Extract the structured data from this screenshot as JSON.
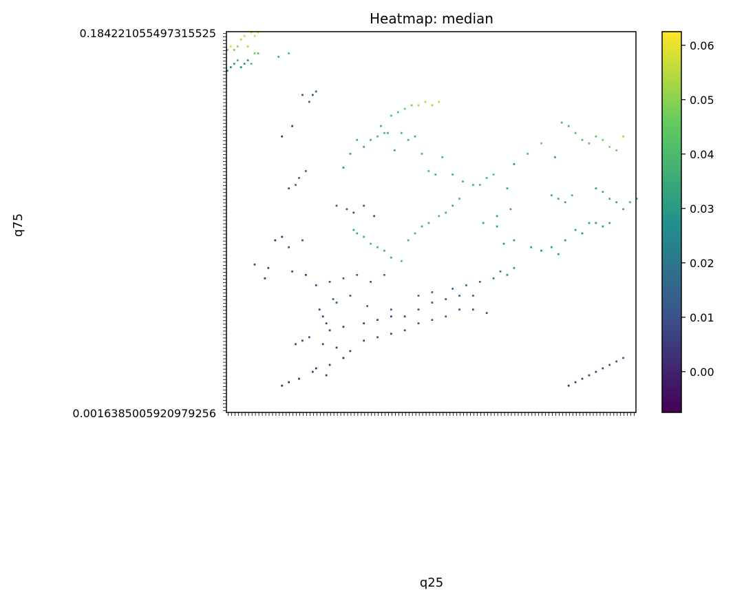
{
  "chart_data": {
    "type": "heatmap",
    "title": "Heatmap: median",
    "xlabel": "q25",
    "ylabel": "q75",
    "y_first_tick_label": "0.184221055497315525",
    "y_last_tick_label": "0.0016385005920979256",
    "x_tick_count": 120,
    "y_tick_count": 110,
    "colorbar": {
      "colormap": "viridis",
      "vmin": -0.0075,
      "vmax": 0.0625,
      "ticks": [
        0.0,
        0.01,
        0.02,
        0.03,
        0.04,
        0.05,
        0.06
      ],
      "tick_labels": [
        "0.00",
        "0.01",
        "0.02",
        "0.03",
        "0.04",
        "0.05",
        "0.06"
      ],
      "colors": [
        "#440154",
        "#3b528b",
        "#21918c",
        "#5ec962",
        "#fde725"
      ]
    },
    "cells": [
      [
        0,
        5,
        0.044
      ],
      [
        1,
        4,
        0.058
      ],
      [
        2,
        5,
        0.048
      ],
      [
        3,
        4,
        0.051
      ],
      [
        4,
        2,
        0.054
      ],
      [
        5,
        1,
        0.058
      ],
      [
        6,
        4,
        0.053
      ],
      [
        7,
        0,
        0.06
      ],
      [
        8,
        1,
        0.059
      ],
      [
        9,
        0,
        0.062
      ],
      [
        0,
        11,
        0.022
      ],
      [
        1,
        10,
        0.024
      ],
      [
        2,
        9,
        0.03
      ],
      [
        3,
        8,
        0.038
      ],
      [
        4,
        10,
        0.025
      ],
      [
        5,
        9,
        0.028
      ],
      [
        6,
        8,
        0.03
      ],
      [
        7,
        9,
        0.041
      ],
      [
        8,
        6,
        0.047
      ],
      [
        9,
        6,
        0.042
      ],
      [
        15,
        7,
        0.038
      ],
      [
        18,
        6,
        0.04
      ],
      [
        22,
        18,
        0.012
      ],
      [
        25,
        18,
        0.01
      ],
      [
        24,
        20,
        0.014
      ],
      [
        26,
        17,
        0.016
      ],
      [
        16,
        30,
        0.002
      ],
      [
        19,
        27,
        0.004
      ],
      [
        18,
        45,
        0.012
      ],
      [
        20,
        44,
        0.014
      ],
      [
        21,
        42,
        0.015
      ],
      [
        23,
        40,
        0.016
      ],
      [
        34,
        39,
        0.03
      ],
      [
        36,
        35,
        0.034
      ],
      [
        38,
        31,
        0.036
      ],
      [
        40,
        33,
        0.034
      ],
      [
        42,
        31,
        0.037
      ],
      [
        44,
        30,
        0.04
      ],
      [
        46,
        29,
        0.04
      ],
      [
        48,
        24,
        0.042
      ],
      [
        50,
        23,
        0.043
      ],
      [
        52,
        22,
        0.046
      ],
      [
        54,
        21,
        0.047
      ],
      [
        56,
        21,
        0.052
      ],
      [
        58,
        20,
        0.055
      ],
      [
        60,
        21,
        0.052
      ],
      [
        62,
        20,
        0.055
      ],
      [
        45,
        27,
        0.036
      ],
      [
        47,
        29,
        0.038
      ],
      [
        49,
        34,
        0.036
      ],
      [
        51,
        29,
        0.038
      ],
      [
        53,
        31,
        0.036
      ],
      [
        55,
        30,
        0.038
      ],
      [
        57,
        35,
        0.04
      ],
      [
        59,
        40,
        0.04
      ],
      [
        61,
        41,
        0.037
      ],
      [
        63,
        36,
        0.04
      ],
      [
        66,
        41,
        0.038
      ],
      [
        69,
        43,
        0.038
      ],
      [
        72,
        44,
        0.037
      ],
      [
        74,
        44,
        0.04
      ],
      [
        76,
        42,
        0.04
      ],
      [
        78,
        41,
        0.043
      ],
      [
        82,
        45,
        0.034
      ],
      [
        84,
        38,
        0.03
      ],
      [
        98,
        26,
        0.04
      ],
      [
        100,
        27,
        0.038
      ],
      [
        102,
        29,
        0.042
      ],
      [
        104,
        31,
        0.04
      ],
      [
        106,
        32,
        0.043
      ],
      [
        108,
        30,
        0.045
      ],
      [
        110,
        31,
        0.047
      ],
      [
        112,
        33,
        0.049
      ],
      [
        114,
        34,
        0.047
      ],
      [
        116,
        30,
        0.053
      ],
      [
        88,
        35,
        0.042
      ],
      [
        92,
        32,
        0.046
      ],
      [
        96,
        36,
        0.032
      ],
      [
        32,
        50,
        0.014
      ],
      [
        35,
        51,
        0.012
      ],
      [
        37,
        52,
        0.01
      ],
      [
        40,
        50,
        0.012
      ],
      [
        43,
        53,
        0.01
      ],
      [
        37,
        57,
        0.036
      ],
      [
        38,
        58,
        0.036
      ],
      [
        40,
        59,
        0.037
      ],
      [
        42,
        61,
        0.038
      ],
      [
        44,
        62,
        0.036
      ],
      [
        46,
        63,
        0.037
      ],
      [
        48,
        65,
        0.037
      ],
      [
        51,
        66,
        0.04
      ],
      [
        53,
        60,
        0.038
      ],
      [
        55,
        58,
        0.04
      ],
      [
        57,
        56,
        0.037
      ],
      [
        59,
        55,
        0.036
      ],
      [
        62,
        53,
        0.04
      ],
      [
        64,
        52,
        0.038
      ],
      [
        66,
        50,
        0.036
      ],
      [
        68,
        48,
        0.038
      ],
      [
        14,
        60,
        0.002
      ],
      [
        16,
        59,
        0.004
      ],
      [
        18,
        62,
        0.008
      ],
      [
        22,
        60,
        0.01
      ],
      [
        75,
        55,
        0.034
      ],
      [
        79,
        53,
        0.032
      ],
      [
        83,
        51,
        0.036
      ],
      [
        95,
        47,
        0.034
      ],
      [
        97,
        48,
        0.036
      ],
      [
        99,
        49,
        0.034
      ],
      [
        101,
        47,
        0.038
      ],
      [
        108,
        45,
        0.032
      ],
      [
        110,
        46,
        0.036
      ],
      [
        112,
        48,
        0.034
      ],
      [
        114,
        49,
        0.036
      ],
      [
        116,
        51,
        0.036
      ],
      [
        118,
        49,
        0.038
      ],
      [
        120,
        48,
        0.04
      ],
      [
        79,
        56,
        0.032
      ],
      [
        81,
        61,
        0.03
      ],
      [
        84,
        60,
        0.032
      ],
      [
        89,
        62,
        0.03
      ],
      [
        92,
        63,
        0.028
      ],
      [
        95,
        62,
        0.03
      ],
      [
        97,
        64,
        0.03
      ],
      [
        99,
        60,
        0.03
      ],
      [
        102,
        57,
        0.032
      ],
      [
        104,
        58,
        0.03
      ],
      [
        106,
        55,
        0.032
      ],
      [
        108,
        55,
        0.03
      ],
      [
        110,
        56,
        0.03
      ],
      [
        112,
        55,
        0.032
      ],
      [
        8,
        67,
        0.006
      ],
      [
        12,
        68,
        0.004
      ],
      [
        11,
        71,
        0.001
      ],
      [
        19,
        69,
        0.006
      ],
      [
        23,
        70,
        0.004
      ],
      [
        26,
        73,
        0.01
      ],
      [
        30,
        72,
        0.012
      ],
      [
        34,
        71,
        0.014
      ],
      [
        38,
        70,
        0.016
      ],
      [
        42,
        72,
        0.012
      ],
      [
        46,
        70,
        0.018
      ],
      [
        31,
        77,
        0.014
      ],
      [
        32,
        78,
        0.012
      ],
      [
        36,
        76,
        0.014
      ],
      [
        41,
        79,
        0.02
      ],
      [
        48,
        80,
        0.016
      ],
      [
        56,
        76,
        0.016
      ],
      [
        60,
        75,
        0.014
      ],
      [
        66,
        74,
        0.018
      ],
      [
        70,
        73,
        0.02
      ],
      [
        74,
        72,
        0.02
      ],
      [
        78,
        71,
        0.022
      ],
      [
        80,
        69,
        0.024
      ],
      [
        82,
        70,
        0.026
      ],
      [
        84,
        68,
        0.03
      ],
      [
        27,
        80,
        0.008
      ],
      [
        28,
        82,
        0.006
      ],
      [
        29,
        84,
        0.006
      ],
      [
        30,
        86,
        0.005
      ],
      [
        34,
        85,
        0.004
      ],
      [
        40,
        84,
        0.004
      ],
      [
        44,
        83,
        0.006
      ],
      [
        48,
        82,
        0.006
      ],
      [
        52,
        82,
        0.008
      ],
      [
        56,
        80,
        0.01
      ],
      [
        60,
        78,
        0.012
      ],
      [
        64,
        77,
        0.012
      ],
      [
        68,
        76,
        0.014
      ],
      [
        72,
        76,
        0.016
      ],
      [
        20,
        90,
        0.004
      ],
      [
        22,
        89,
        0.006
      ],
      [
        24,
        88,
        0.008
      ],
      [
        28,
        90,
        0.006
      ],
      [
        32,
        91,
        0.004
      ],
      [
        36,
        92,
        0.006
      ],
      [
        40,
        89,
        0.006
      ],
      [
        44,
        88,
        0.008
      ],
      [
        48,
        87,
        0.006
      ],
      [
        52,
        86,
        0.008
      ],
      [
        56,
        84,
        0.01
      ],
      [
        60,
        83,
        0.012
      ],
      [
        64,
        82,
        0.014
      ],
      [
        68,
        80,
        0.01
      ],
      [
        72,
        80,
        0.012
      ],
      [
        76,
        81,
        0.01
      ],
      [
        26,
        97,
        0.002
      ],
      [
        30,
        96,
        0.004
      ],
      [
        34,
        94,
        0.002
      ],
      [
        16,
        102,
        0.0
      ],
      [
        18,
        101,
        0.001
      ],
      [
        21,
        100,
        0.002
      ],
      [
        25,
        98,
        0.003
      ],
      [
        29,
        99,
        0.004
      ],
      [
        100,
        102,
        0.002
      ],
      [
        102,
        101,
        0.004
      ],
      [
        104,
        100,
        0.004
      ],
      [
        106,
        99,
        0.005
      ],
      [
        108,
        98,
        0.006
      ],
      [
        110,
        97,
        0.006
      ],
      [
        112,
        96,
        0.008
      ],
      [
        114,
        95,
        0.01
      ],
      [
        116,
        94,
        0.012
      ]
    ]
  }
}
